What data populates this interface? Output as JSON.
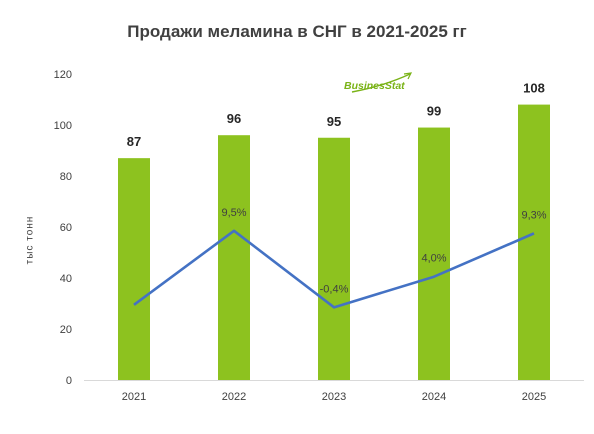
{
  "chart_data": {
    "type": "bar",
    "title": "Продажи меламина в СНГ в 2021-2025 гг",
    "ylabel": "тыс тонн",
    "ylim": [
      0,
      120
    ],
    "yticks": [
      "0",
      "20",
      "40",
      "60",
      "80",
      "100",
      "120"
    ],
    "categories": [
      "2021",
      "2022",
      "2023",
      "2024",
      "2025"
    ],
    "series": [
      {
        "type": "bar",
        "values": [
          87,
          96,
          95,
          99,
          108
        ],
        "labels": [
          "87",
          "96",
          "95",
          "99",
          "108"
        ]
      },
      {
        "type": "line",
        "values": [
          null,
          9.5,
          -0.4,
          4.0,
          9.3
        ],
        "labels": [
          "",
          "9,5%",
          "-0,4%",
          "4,0%",
          "9,3%"
        ]
      }
    ],
    "grid": false,
    "legend": "none"
  },
  "logo_text": "BusinesStat",
  "colors": {
    "bar": "#8dc21f",
    "line": "#4472c4",
    "text": "#404040",
    "logo": "#7ab317"
  }
}
